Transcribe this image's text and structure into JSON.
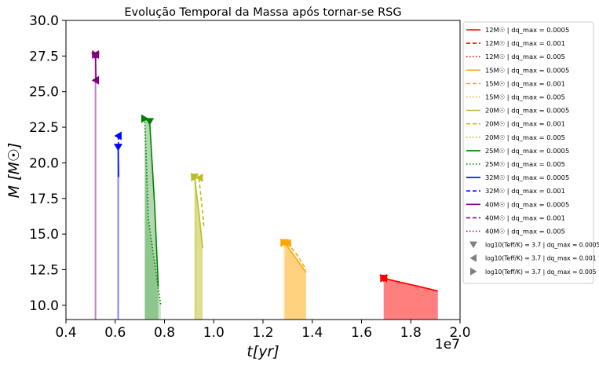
{
  "chart_data": {
    "type": "line",
    "title": "Evolução Temporal da Massa após tornar-se RSG",
    "xlabel": "t[yr]",
    "ylabel": "M [M☉]",
    "x_offset_label": "1e7",
    "xlim": [
      0.4,
      2.0
    ],
    "ylim": [
      9.0,
      30.0
    ],
    "x_ticks": [
      0.4,
      0.6,
      0.8,
      1.0,
      1.2,
      1.4,
      1.6,
      1.8,
      2.0
    ],
    "x_tick_labels": [
      "0.4",
      "0.6",
      "0.8",
      "1.0",
      "1.2",
      "1.4",
      "1.6",
      "1.8",
      "2.0"
    ],
    "y_ticks": [
      10.0,
      12.5,
      15.0,
      17.5,
      20.0,
      22.5,
      25.0,
      27.5,
      30.0
    ],
    "y_tick_labels": [
      "10.0",
      "12.5",
      "15.0",
      "17.5",
      "20.0",
      "22.5",
      "25.0",
      "27.5",
      "30.0"
    ],
    "grid": false,
    "legend_position": "outside-right",
    "series": [
      {
        "name": "12M☉ | dq_max = 0.0005",
        "color": "#ff0000",
        "dash": "solid",
        "fill": true,
        "fill_opacity": 0.5,
        "x": [
          1.69,
          1.76,
          1.84,
          1.91
        ],
        "y": [
          11.9,
          11.6,
          11.3,
          11.0
        ]
      },
      {
        "name": "12M☉ | dq_max = 0.001",
        "color": "#ff0000",
        "dash": "dashed",
        "fill": false,
        "x": [
          1.69,
          1.8,
          1.91
        ],
        "y": [
          11.9,
          11.45,
          11.0
        ]
      },
      {
        "name": "12M☉ | dq_max = 0.005",
        "color": "#ff0000",
        "dash": "dotted",
        "fill": false,
        "x": [
          1.69,
          1.8,
          1.91
        ],
        "y": [
          11.9,
          11.45,
          11.0
        ]
      },
      {
        "name": "15M☉ | dq_max = 0.0005",
        "color": "#ffa500",
        "dash": "solid",
        "fill": true,
        "fill_opacity": 0.5,
        "x": [
          1.288,
          1.33,
          1.375
        ],
        "y": [
          14.4,
          13.4,
          12.3
        ]
      },
      {
        "name": "15M☉ | dq_max = 0.001",
        "color": "#ffa500",
        "dash": "dashed",
        "fill": false,
        "x": [
          1.3,
          1.34,
          1.375
        ],
        "y": [
          14.35,
          13.5,
          12.5
        ]
      },
      {
        "name": "15M☉ | dq_max = 0.005",
        "color": "#ffa500",
        "dash": "dotted",
        "fill": true,
        "fill_opacity": 0.2,
        "x": [
          1.285,
          1.288
        ],
        "y": [
          14.4,
          14.4
        ]
      },
      {
        "name": "20M☉ | dq_max = 0.0005",
        "color": "#bcbd22",
        "dash": "solid",
        "fill": true,
        "fill_opacity": 0.5,
        "x": [
          0.922,
          0.94,
          0.955
        ],
        "y": [
          19.0,
          16.5,
          14.0
        ]
      },
      {
        "name": "20M☉ | dq_max = 0.001",
        "color": "#bcbd22",
        "dash": "dashed",
        "fill": false,
        "x": [
          0.94,
          0.952,
          0.96
        ],
        "y": [
          18.9,
          17.0,
          15.5
        ]
      },
      {
        "name": "20M☉ | dq_max = 0.005",
        "color": "#bcbd22",
        "dash": "dotted",
        "fill": true,
        "fill_opacity": 0.2,
        "x": [
          0.922,
          0.93
        ],
        "y": [
          19.0,
          19.0
        ]
      },
      {
        "name": "25M☉ | dq_max = 0.0005",
        "color": "#008000",
        "dash": "solid",
        "fill": true,
        "fill_opacity": 0.3,
        "x": [
          0.72,
          0.74,
          0.76,
          0.775
        ],
        "y": [
          23.1,
          22.9,
          17.0,
          11.3
        ]
      },
      {
        "name": "25M☉ | dq_max = 0.005",
        "color": "#008000",
        "dash": "dotted",
        "fill": true,
        "fill_opacity": 0.2,
        "x": [
          0.72,
          0.735,
          0.76,
          0.785
        ],
        "y": [
          23.1,
          16.0,
          13.0,
          10.0
        ]
      },
      {
        "name": "32M☉ | dq_max = 0.0005",
        "color": "#0000ff",
        "dash": "solid",
        "fill": true,
        "fill_opacity": 0.5,
        "x": [
          0.612,
          0.614
        ],
        "y": [
          21.0,
          19.0
        ]
      },
      {
        "name": "32M☉ | dq_max = 0.001",
        "color": "#0000ff",
        "dash": "dashed",
        "fill": false,
        "x": [
          0.612,
          0.614
        ],
        "y": [
          21.9,
          21.1
        ]
      },
      {
        "name": "40M☉ | dq_max = 0.0005",
        "color": "#800080",
        "dash": "solid",
        "fill": true,
        "fill_opacity": 0.5,
        "x": [
          0.52,
          0.522
        ],
        "y": [
          27.5,
          25.8
        ]
      },
      {
        "name": "40M☉ | dq_max = 0.001",
        "color": "#800080",
        "dash": "dashed",
        "fill": false,
        "x": [
          0.52,
          0.521
        ],
        "y": [
          27.6,
          27.3
        ]
      },
      {
        "name": "40M☉ | dq_max = 0.005",
        "color": "#800080",
        "dash": "dotted",
        "fill": false,
        "x": [
          0.52,
          0.521
        ],
        "y": [
          27.6,
          27.3
        ]
      }
    ],
    "rsg_markers": [
      {
        "name": "log10(Teff/K) = 3.7 | dq_max = 0.0005",
        "shape": "triangle-down",
        "color": "#808080",
        "points": [
          {
            "x": 1.69,
            "y": 11.9,
            "color": "#ff0000"
          },
          {
            "x": 1.288,
            "y": 14.4,
            "color": "#ffa500"
          },
          {
            "x": 0.922,
            "y": 19.0,
            "color": "#bcbd22"
          },
          {
            "x": 0.74,
            "y": 22.9,
            "color": "#008000"
          },
          {
            "x": 0.612,
            "y": 21.1,
            "color": "#0000ff"
          },
          {
            "x": 0.52,
            "y": 27.5,
            "color": "#800080"
          }
        ]
      },
      {
        "name": "log10(Teff/K) = 3.7 | dq_max = 0.001",
        "shape": "triangle-left",
        "color": "#808080",
        "points": [
          {
            "x": 1.69,
            "y": 11.9,
            "color": "#ff0000"
          },
          {
            "x": 1.3,
            "y": 14.35,
            "color": "#ffa500"
          },
          {
            "x": 0.942,
            "y": 18.95,
            "color": "#bcbd22"
          },
          {
            "x": 0.612,
            "y": 21.9,
            "color": "#0000ff"
          },
          {
            "x": 0.52,
            "y": 27.6,
            "color": "#800080"
          },
          {
            "x": 0.52,
            "y": 25.8,
            "color": "#800080"
          }
        ]
      },
      {
        "name": "log10(Teff/K) = 3.7 | dq_max = 0.005",
        "shape": "triangle-right",
        "color": "#808080",
        "points": [
          {
            "x": 1.69,
            "y": 11.9,
            "color": "#ff0000"
          },
          {
            "x": 1.285,
            "y": 14.4,
            "color": "#ffa500"
          },
          {
            "x": 0.922,
            "y": 19.0,
            "color": "#bcbd22"
          },
          {
            "x": 0.72,
            "y": 23.1,
            "color": "#008000"
          },
          {
            "x": 0.52,
            "y": 27.6,
            "color": "#800080"
          }
        ]
      }
    ]
  }
}
